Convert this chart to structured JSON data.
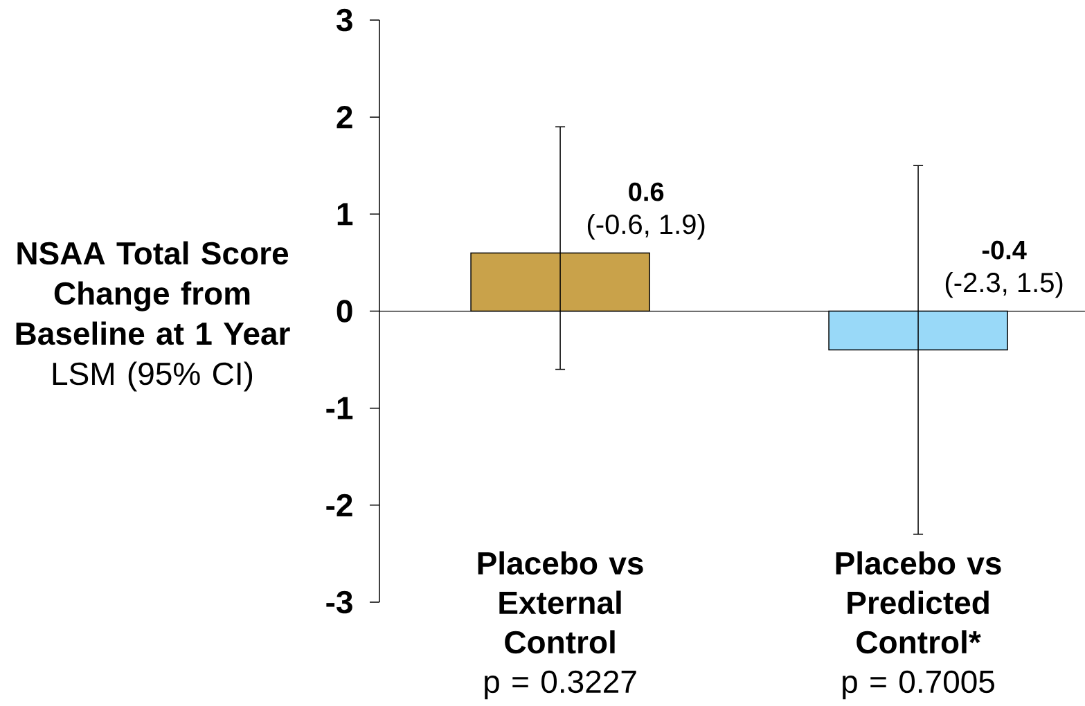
{
  "chart_data": {
    "type": "bar",
    "ylabel": "**NSAA Total Score Change from Baseline at 1 Year** LSM (95% CI)",
    "categories": [
      "Placebo vs External Control",
      "Placebo vs Predicted Control*"
    ],
    "values": [
      0.6,
      -0.4
    ],
    "colors": [
      "#c9a24a",
      "#99d9f8"
    ],
    "errors": [
      [
        -0.6,
        1.9
      ],
      [
        -2.3,
        1.5
      ]
    ],
    "data_labels": true,
    "annotations": [
      {
        "text": "(-0.6, 1.9)",
        "x": "Placebo vs External Control",
        "y": 0.6
      },
      {
        "text": "(-2.3, 1.5)",
        "x": "Placebo vs Predicted Control*",
        "y": -0.4
      },
      "p = 0.3227",
      "p = 0.7005"
    ],
    "ylim": [
      -3,
      3
    ],
    "yticks": [
      -3,
      -2,
      -1,
      0,
      1,
      2,
      3
    ]
  }
}
